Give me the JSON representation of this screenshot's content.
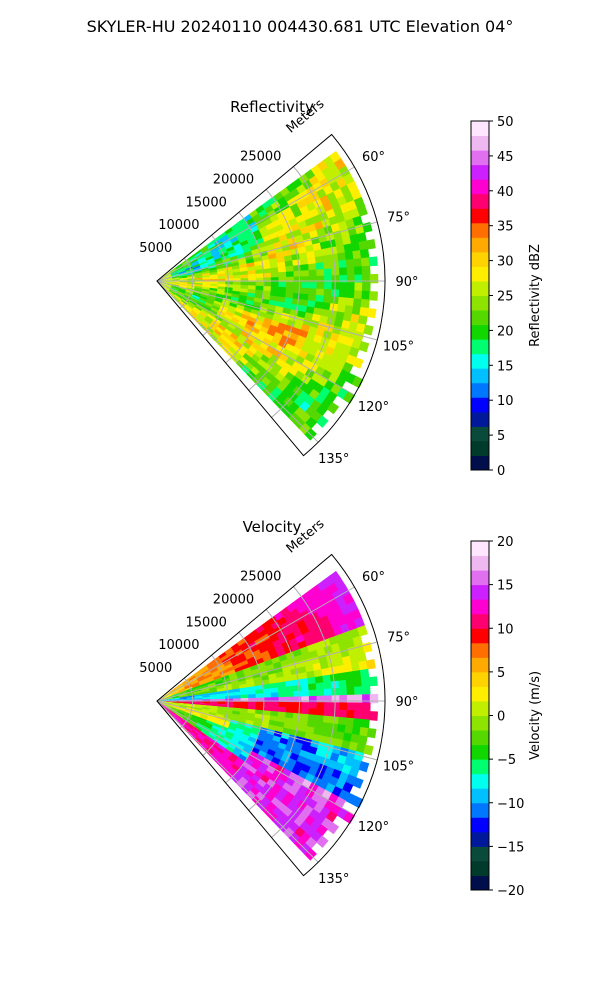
{
  "figure": {
    "title": "SKYLER-HU  20240110  004430.681 UTC Elevation 04°"
  },
  "colors": {
    "grid": "#b0b0b0",
    "axis": "#000000",
    "reflectivity_colormap": [
      "#000f4c",
      "#003a2a",
      "#0a4a3a",
      "#00199b",
      "#0000ff",
      "#0077ff",
      "#00c0ff",
      "#00ffee",
      "#00ff70",
      "#11d600",
      "#55d800",
      "#8ee400",
      "#c0f000",
      "#ffee00",
      "#ffd300",
      "#ffaa00",
      "#ff6e00",
      "#ff0000",
      "#ff0070",
      "#ff00d0",
      "#cc20ff",
      "#e070f0",
      "#f0b8f0",
      "#ffe6ff"
    ],
    "velocity_colormap": [
      "#000f4c",
      "#003a2a",
      "#0a4a3a",
      "#00199b",
      "#0000ff",
      "#0077ff",
      "#00c0ff",
      "#00ffee",
      "#00ff70",
      "#11d600",
      "#55d800",
      "#8ee400",
      "#c0f000",
      "#ffee00",
      "#ffd300",
      "#ffaa00",
      "#ff6e00",
      "#ff0000",
      "#ff0070",
      "#ff00d0",
      "#cc20ff",
      "#e070f0",
      "#f0b8f0",
      "#ffe6ff"
    ]
  },
  "chart_data": [
    {
      "type": "heatmap",
      "subtype": "polar-sector (PPI radar scan)",
      "title": "Reflectivity",
      "radial_label": "Meters",
      "radial_ticks": [
        "5000",
        "10000",
        "15000",
        "20000",
        "25000"
      ],
      "angular_ticks": [
        "60°",
        "75°",
        "90°",
        "105°",
        "120°",
        "135°"
      ],
      "azimuth_range_deg": [
        50,
        140
      ],
      "range_max_m": 32000,
      "colorbar": {
        "label": "Reflectivity dBZ",
        "min": 0,
        "max": 50,
        "ticks": [
          "0",
          "5",
          "10",
          "15",
          "20",
          "25",
          "30",
          "35",
          "40",
          "45",
          "50"
        ]
      },
      "field_description": "Mostly 20–30 dBZ; streaks of 30–38 dBZ near 100–125° azimuth"
    },
    {
      "type": "heatmap",
      "subtype": "polar-sector (PPI radar scan)",
      "title": "Velocity",
      "radial_label": "Meters",
      "radial_ticks": [
        "5000",
        "10000",
        "15000",
        "20000",
        "25000"
      ],
      "angular_ticks": [
        "60°",
        "75°",
        "90°",
        "105°",
        "120°",
        "135°"
      ],
      "azimuth_range_deg": [
        50,
        140
      ],
      "range_max_m": 32000,
      "colorbar": {
        "label": "Velocity (m/s)",
        "min": -20,
        "max": 20,
        "ticks": [
          "−20",
          "−15",
          "−10",
          "−5",
          "0",
          "5",
          "10",
          "15",
          "20"
        ]
      },
      "field_description": "Banded Doppler field from about −12 m/s to +16 m/s with a strong shear band near 90–95° azimuth"
    }
  ]
}
